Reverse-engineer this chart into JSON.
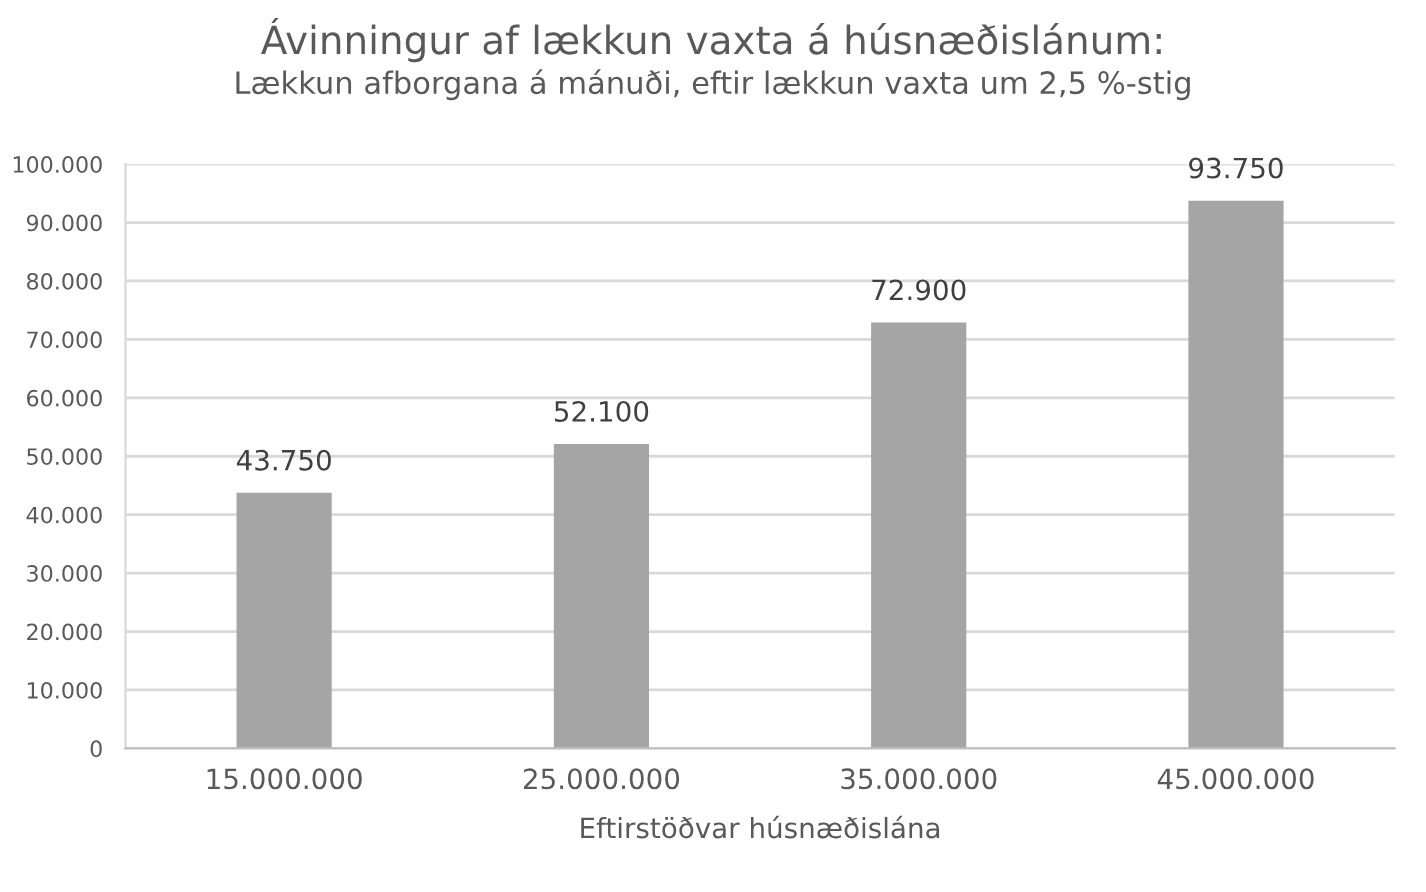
{
  "chart_data": {
    "type": "bar",
    "title": "Ávinningur af lækkun vaxta á húsnæðislánum:",
    "subtitle": "Lækkun afborgana á mánuði, eftir lækkun vaxta um 2,5 %-stig",
    "xlabel": "Eftirstöðvar húsnæðislána",
    "categories": [
      "15.000.000",
      "25.000.000",
      "35.000.000",
      "45.000.000"
    ],
    "values": [
      43750,
      52100,
      72900,
      93750
    ],
    "value_labels": [
      "43.750",
      "52.100",
      "72.900",
      "93.750"
    ],
    "color": "#a5a5a5",
    "ylim": [
      0,
      100000
    ],
    "yticks": [
      0,
      {
        "value": 10000,
        "label": "10.000"
      },
      {
        "value": 20000,
        "label": "20.000"
      },
      {
        "value": 30000,
        "label": "30.000"
      },
      {
        "value": 40000,
        "label": "40.000"
      },
      {
        "value": 50000,
        "label": "50.000"
      },
      {
        "value": 60000,
        "label": "60.000"
      },
      {
        "value": 70000,
        "label": "70.000"
      },
      {
        "value": 80000,
        "label": "80.000"
      },
      {
        "value": 90000,
        "label": "90.000"
      },
      {
        "value": 100000,
        "label": "100.000"
      }
    ],
    "grid": "y",
    "legend": false
  }
}
